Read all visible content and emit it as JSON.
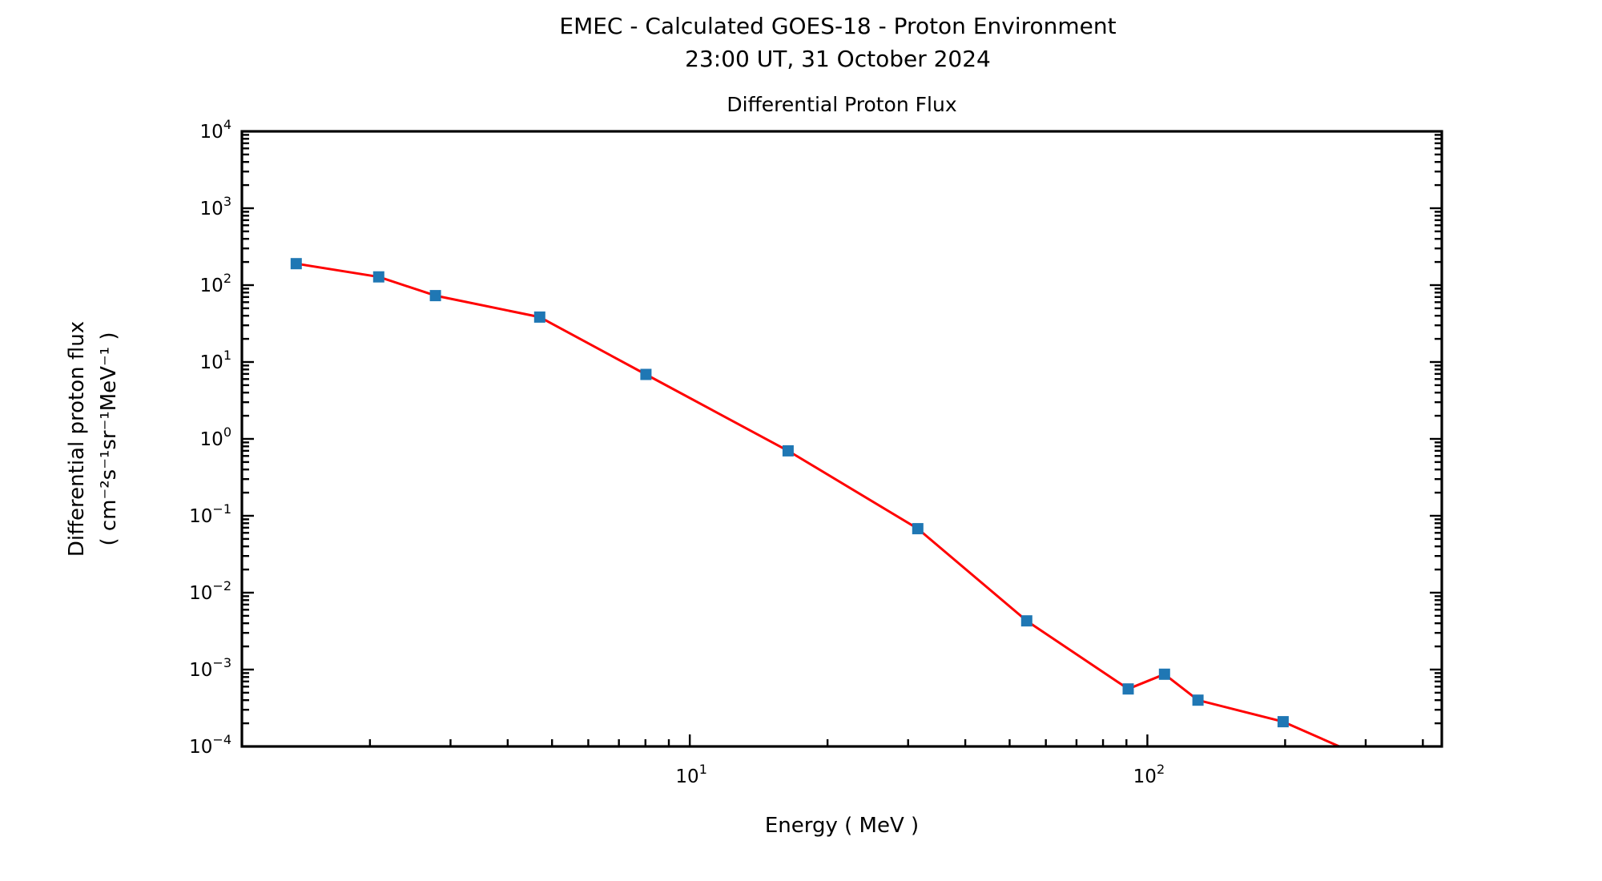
{
  "figure": {
    "title_line1": "EMEC - Calculated GOES-18 - Proton Environment",
    "title_line2": "23:00 UT, 31 October 2024",
    "axes_title": "Differential Proton Flux",
    "xlabel": "Energy ( MeV )",
    "ylabel_line1": "Differential proton flux",
    "ylabel_line2": "( cm⁻²s⁻¹sr⁻¹MeV⁻¹ )",
    "background_color": "#ffffff",
    "text_color": "#000000",
    "axis_color": "#000000"
  },
  "chart_data": {
    "type": "line",
    "title": "Differential Proton Flux",
    "xlabel": "Energy ( MeV )",
    "ylabel": "Differential proton flux ( cm⁻²s⁻¹sr⁻¹MeV⁻¹ )",
    "x_scale": "log",
    "y_scale": "log",
    "xlim": [
      1.05,
      440
    ],
    "ylim": [
      0.0001,
      10000.0
    ],
    "x_major_tick_exponents": [
      1,
      2
    ],
    "x_major_tick_labels": [
      "10¹",
      "10²"
    ],
    "y_major_tick_exponents": [
      4,
      3,
      2,
      1,
      0,
      -1,
      -2,
      -3,
      -4
    ],
    "y_major_tick_labels": [
      "10⁴",
      "10³",
      "10²",
      "10¹",
      "10⁰",
      "10⁻¹",
      "10⁻²",
      "10⁻³",
      "10⁻⁴"
    ],
    "grid": false,
    "legend": false,
    "series": [
      {
        "name": "differential-proton-flux",
        "line_color": "#ff0000",
        "marker": "square",
        "marker_color": "#1f77b4",
        "points": [
          [
            1.38,
            190
          ],
          [
            2.09,
            128
          ],
          [
            2.78,
            73
          ],
          [
            4.7,
            38.4
          ],
          [
            8.02,
            6.9
          ],
          [
            16.4,
            0.7
          ],
          [
            31.5,
            0.068
          ],
          [
            54.5,
            0.0043
          ],
          [
            90.8,
            0.00056
          ],
          [
            109,
            0.00087
          ],
          [
            129,
            0.0004
          ],
          [
            198,
            0.00021
          ]
        ],
        "offscale_point_below_axis": [
          330,
          5.5e-05
        ]
      }
    ]
  }
}
